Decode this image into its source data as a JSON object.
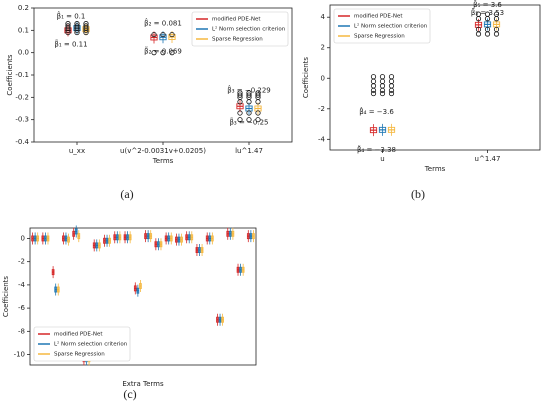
{
  "chart_data": [
    {
      "type": "box",
      "caption": "(a)",
      "xlabel": "Terms",
      "ylabel": "Coefficients",
      "legend": "upper right",
      "categories": [
        "u_xx",
        "u(v^2-0.0031v+0.0205)",
        "lu^1.47"
      ],
      "series": [
        {
          "name": "modified PDE-Net",
          "color": "#d62728",
          "values": [
            0.1,
            0.068,
            -0.24
          ]
        },
        {
          "name": "L² Norm selection criterion",
          "color": "#1f77b4",
          "values": [
            0.11,
            0.069,
            -0.25
          ]
        },
        {
          "name": "Sparse Regression",
          "color": "#f5b841",
          "values": [
            0.105,
            0.07,
            -0.25
          ]
        }
      ],
      "outliers": [
        [
          0.13,
          0.12,
          0.11,
          0.1,
          0.09
        ],
        [
          0.081,
          0.0
        ],
        [
          -0.18,
          -0.19,
          -0.2,
          -0.22,
          -0.27,
          -0.3
        ]
      ],
      "annotations": [
        "β̂₁ = 0.1",
        "β̃₁ = 0.11",
        "β̂₂ = 0.081",
        "β̃₂ = 0.069",
        "β̂₃ = −0.229",
        "β̃₃ = −0.25"
      ],
      "ylim": [
        -0.4,
        0.2
      ],
      "yticks": [
        -0.4,
        -0.3,
        -0.2,
        -0.1,
        {
          "value": 0,
          "label": "0.0"
        },
        0.1,
        0.2
      ]
    },
    {
      "type": "box",
      "caption": "(b)",
      "xlabel": "Terms",
      "ylabel": "Coefficients",
      "legend": "upper left",
      "categories": [
        "u",
        "u^1.47"
      ],
      "series": [
        {
          "name": "modified PDE-Net",
          "color": "#d62728",
          "values": [
            -3.4,
            3.5
          ]
        },
        {
          "name": "L² Norm selection criterion",
          "color": "#1f77b4",
          "values": [
            -3.38,
            3.53
          ]
        },
        {
          "name": "Sparse Regression",
          "color": "#f5b841",
          "values": [
            -3.38,
            3.53
          ]
        }
      ],
      "outliers": [
        [
          0.1,
          -0.2,
          -0.5,
          -0.8,
          -1.0
        ],
        [
          4.2,
          3.9,
          3.2,
          2.9
        ]
      ],
      "annotations": [
        "β̂₄ = −3.6",
        "β̃₄ = −3.38",
        "β̂₅ = 3.6",
        "β̃₅ = 3.53"
      ],
      "ylim": [
        -4.7,
        4.8
      ],
      "yticks": [
        -4,
        -2,
        0,
        2,
        4
      ]
    },
    {
      "type": "box",
      "caption": "(c)",
      "xlabel": "Extra Terms",
      "ylabel": "Coefficients",
      "legend": "lower left",
      "categories": [
        null,
        null,
        null,
        null,
        null,
        null,
        null,
        null,
        null,
        null,
        null,
        null,
        null,
        null,
        null,
        null,
        null,
        null,
        null,
        null,
        null,
        null
      ],
      "series": [
        {
          "name": "modified PDE-Net",
          "color": "#d62728",
          "values": [
            0,
            0,
            -2.9,
            0,
            0.4,
            -10.4,
            -0.6,
            -0.2,
            0.1,
            0.1,
            -4.3,
            0.2,
            -0.5,
            0,
            -0.1,
            0.1,
            -1.0,
            0,
            -7.0,
            0.4,
            -2.7,
            0.2
          ]
        },
        {
          "name": "L² Norm selection criterion",
          "color": "#1f77b4",
          "values": [
            0,
            0,
            -4.4,
            0,
            0.6,
            -10.4,
            -0.6,
            -0.2,
            0.1,
            0.1,
            -4.5,
            0.2,
            -0.5,
            0,
            -0.1,
            0.1,
            -1.0,
            0,
            -7.0,
            0.4,
            -2.7,
            0.2
          ]
        },
        {
          "name": "Sparse Regression",
          "color": "#f5b841",
          "values": [
            0,
            0,
            -4.4,
            -0.1,
            0.2,
            -10.4,
            -0.6,
            -0.2,
            0.1,
            0.1,
            -4.1,
            0.2,
            -0.5,
            0,
            -0.1,
            0.1,
            -1.0,
            0,
            -7.0,
            0.4,
            -2.7,
            0.2
          ]
        }
      ],
      "ylim": [
        -10.9,
        0.9
      ],
      "yticks": [
        -10,
        -8,
        -6,
        -4,
        -2,
        0
      ]
    }
  ]
}
